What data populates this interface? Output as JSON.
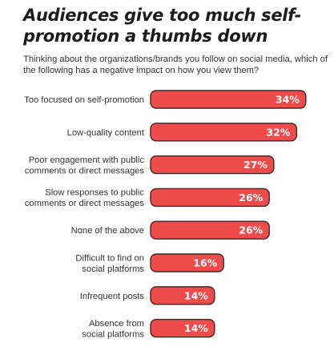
{
  "chart_data": {
    "type": "bar",
    "orientation": "horizontal",
    "title": "Audiences give too much self-promotion a thumbs down",
    "subtitle": "Thinking about the organizations/brands you follow on social media, which of the following has a negative impact on how you view them?",
    "categories": [
      "Too focused on self-promotion",
      "Low-quality content",
      "Poor engagement with public comments or direct messages",
      "Slow responses to public comments or direct messages",
      "None of the above",
      "Difficult to find on social platforms",
      "Infrequent posts",
      "Absence from social platforms"
    ],
    "category_lines": [
      [
        "Too focused on self-promotion"
      ],
      [
        "Low-quality content"
      ],
      [
        "Poor engagement with public",
        "comments or direct messages"
      ],
      [
        "Slow responses to public",
        "comments or direct messages"
      ],
      [
        "None of the above"
      ],
      [
        "Difficult to find on",
        "social platforms"
      ],
      [
        "Infrequent posts"
      ],
      [
        "Absence from",
        "social platforms"
      ]
    ],
    "values": [
      34,
      32,
      27,
      26,
      26,
      16,
      14,
      14
    ],
    "value_labels": [
      "34%",
      "32%",
      "27%",
      "26%",
      "26%",
      "16%",
      "14%",
      "14%"
    ],
    "unit": "%",
    "xlabel": "",
    "ylabel": "",
    "bar_color": "#f04b4b",
    "bar_border_color": "#3a2a2a",
    "legend": "none",
    "grid": false
  }
}
